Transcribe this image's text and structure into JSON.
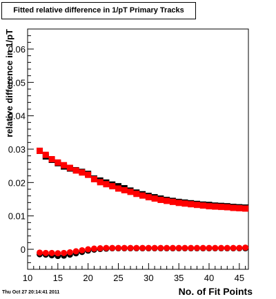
{
  "chart_data": {
    "type": "scatter",
    "title": "Fitted relative difference in 1/pT Primary Tracks",
    "xlabel": "No. of Fit Points",
    "ylabel": "relative difference in 1/pT",
    "xlim": [
      10,
      46.5
    ],
    "ylim": [
      -0.006,
      0.066
    ],
    "x_ticks": [
      10,
      15,
      20,
      25,
      30,
      35,
      40,
      45
    ],
    "x_tick_labels": [
      "10",
      "15",
      "20",
      "25",
      "30",
      "35",
      "40",
      "45"
    ],
    "y_ticks": [
      0,
      0.01,
      0.02,
      0.03,
      0.04,
      0.05,
      0.06
    ],
    "y_tick_labels": [
      "0",
      "0.01",
      "0.02",
      "0.03",
      "0.04",
      "0.05",
      "0.06"
    ],
    "grid": false,
    "x": [
      12,
      13,
      14,
      15,
      16,
      17,
      18,
      19,
      20,
      21,
      22,
      23,
      24,
      25,
      26,
      27,
      28,
      29,
      30,
      31,
      32,
      33,
      34,
      35,
      36,
      37,
      38,
      39,
      40,
      41,
      42,
      43,
      44,
      45,
      46
    ],
    "series": [
      {
        "marker": "square",
        "color": "#000000",
        "values": [
          0.0295,
          0.0278,
          0.0268,
          0.0258,
          0.0248,
          0.0242,
          0.0237,
          0.0232,
          0.0226,
          0.0212,
          0.0206,
          0.02,
          0.0194,
          0.0189,
          0.0183,
          0.0176,
          0.017,
          0.0165,
          0.016,
          0.0156,
          0.0152,
          0.0148,
          0.0145,
          0.0142,
          0.014,
          0.0138,
          0.0136,
          0.0134,
          0.0133,
          0.0131,
          0.013,
          0.0129,
          0.0127,
          0.0126,
          0.0125
        ]
      },
      {
        "marker": "square",
        "color": "#ff0000",
        "values": [
          0.0295,
          0.0283,
          0.027,
          0.026,
          0.0252,
          0.0244,
          0.0236,
          0.023,
          0.0223,
          0.021,
          0.0201,
          0.0195,
          0.0189,
          0.0182,
          0.0177,
          0.0172,
          0.0166,
          0.0161,
          0.0156,
          0.0152,
          0.0148,
          0.0145,
          0.0142,
          0.0139,
          0.0137,
          0.0135,
          0.0133,
          0.0131,
          0.0129,
          0.0128,
          0.0127,
          0.0126,
          0.0124,
          0.0123,
          0.0122
        ]
      },
      {
        "marker": "circle",
        "color": "#000000",
        "values": [
          -0.0015,
          -0.0016,
          -0.0018,
          -0.002,
          -0.0019,
          -0.0016,
          -0.0012,
          -0.0008,
          -0.0004,
          -0.0001,
          0.0001,
          0.0002,
          0.0003,
          0.0003,
          0.0003,
          0.0003,
          0.0003,
          0.0003,
          0.0003,
          0.0003,
          0.0003,
          0.0003,
          0.0003,
          0.0003,
          0.0003,
          0.0003,
          0.0003,
          0.0003,
          0.0003,
          0.0003,
          0.0003,
          0.0003,
          0.0003,
          0.0003,
          0.0003
        ]
      },
      {
        "marker": "circle",
        "color": "#ff0000",
        "values": [
          -0.001,
          -0.0011,
          -0.0011,
          -0.0012,
          -0.0011,
          -0.0009,
          -0.0006,
          -0.0003,
          0.0,
          0.0002,
          0.0003,
          0.0004,
          0.0004,
          0.0004,
          0.0004,
          0.0004,
          0.0004,
          0.0004,
          0.0004,
          0.0004,
          0.0004,
          0.0004,
          0.0004,
          0.0004,
          0.0004,
          0.0004,
          0.0004,
          0.0004,
          0.0004,
          0.0004,
          0.0004,
          0.0004,
          0.0004,
          0.0004,
          0.0005
        ]
      }
    ]
  },
  "timestamp": "Thu Oct 27 20:14:41 2011"
}
